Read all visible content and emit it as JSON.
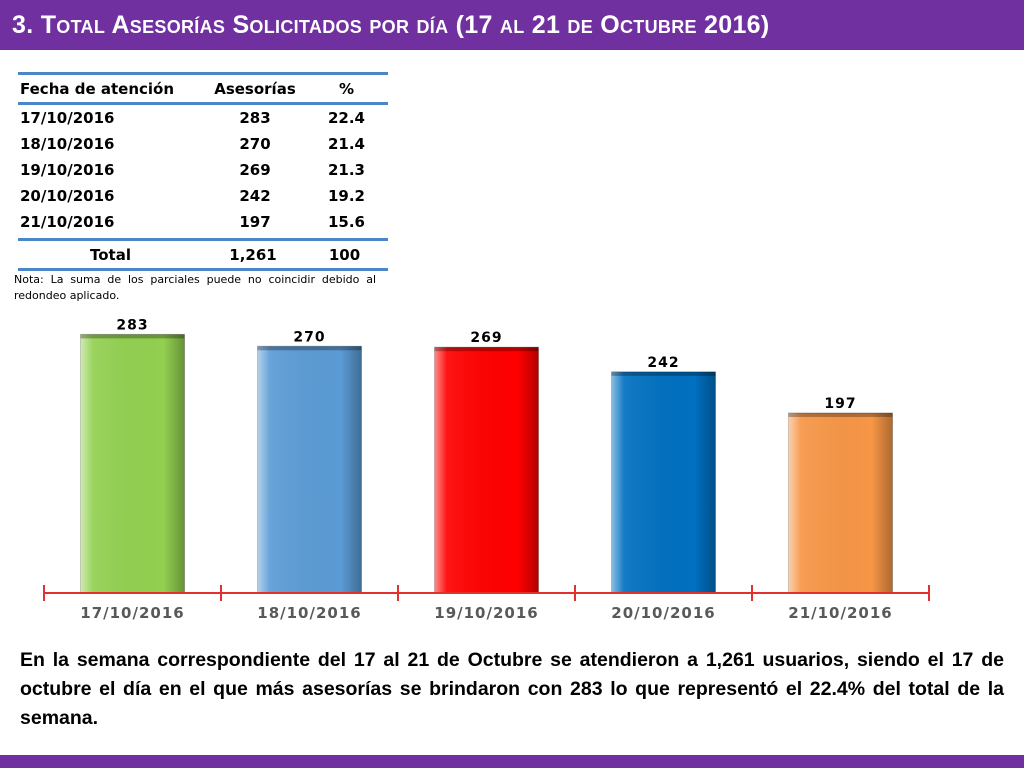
{
  "header": {
    "title": "3.  Total Asesorías Solicitados por día  (17 al 21 de Octubre  2016)"
  },
  "table": {
    "headers": [
      "Fecha de atención",
      "Asesorías",
      "%"
    ],
    "rows": [
      [
        "17/10/2016",
        "283",
        "22.4"
      ],
      [
        "18/10/2016",
        "270",
        "21.4"
      ],
      [
        "19/10/2016",
        "269",
        "21.3"
      ],
      [
        "20/10/2016",
        "242",
        "19.2"
      ],
      [
        "21/10/2016",
        "197",
        "15.6"
      ]
    ],
    "total": [
      "Total",
      "1,261",
      "100"
    ]
  },
  "note": "Nota: La suma de los parciales puede no coincidir debido al redondeo aplicado.",
  "chart_data": {
    "type": "bar",
    "categories": [
      "17/10/2016",
      "18/10/2016",
      "19/10/2016",
      "20/10/2016",
      "21/10/2016"
    ],
    "values": [
      283,
      270,
      269,
      242,
      197
    ],
    "data_labels": [
      "283",
      "270",
      "269",
      "242",
      "197"
    ],
    "colors": [
      "#92d050",
      "#5b9bd5",
      "#ff0000",
      "#0070c0",
      "#f79646"
    ],
    "axis_color": "#e03030",
    "ylim": [
      0,
      290
    ],
    "grid": false,
    "legend": "none",
    "title": "",
    "xlabel": "",
    "ylabel": ""
  },
  "summary": "En la semana correspondiente del 17 al 21 de Octubre se  atendieron a 1,261 usuarios, siendo el 17 de octubre el día en el que más asesorías se brindaron con 283 lo que representó el 22.4% del total de la semana.",
  "colors": {
    "accent": "#7030a0",
    "table_rule": "#4a86c8"
  }
}
